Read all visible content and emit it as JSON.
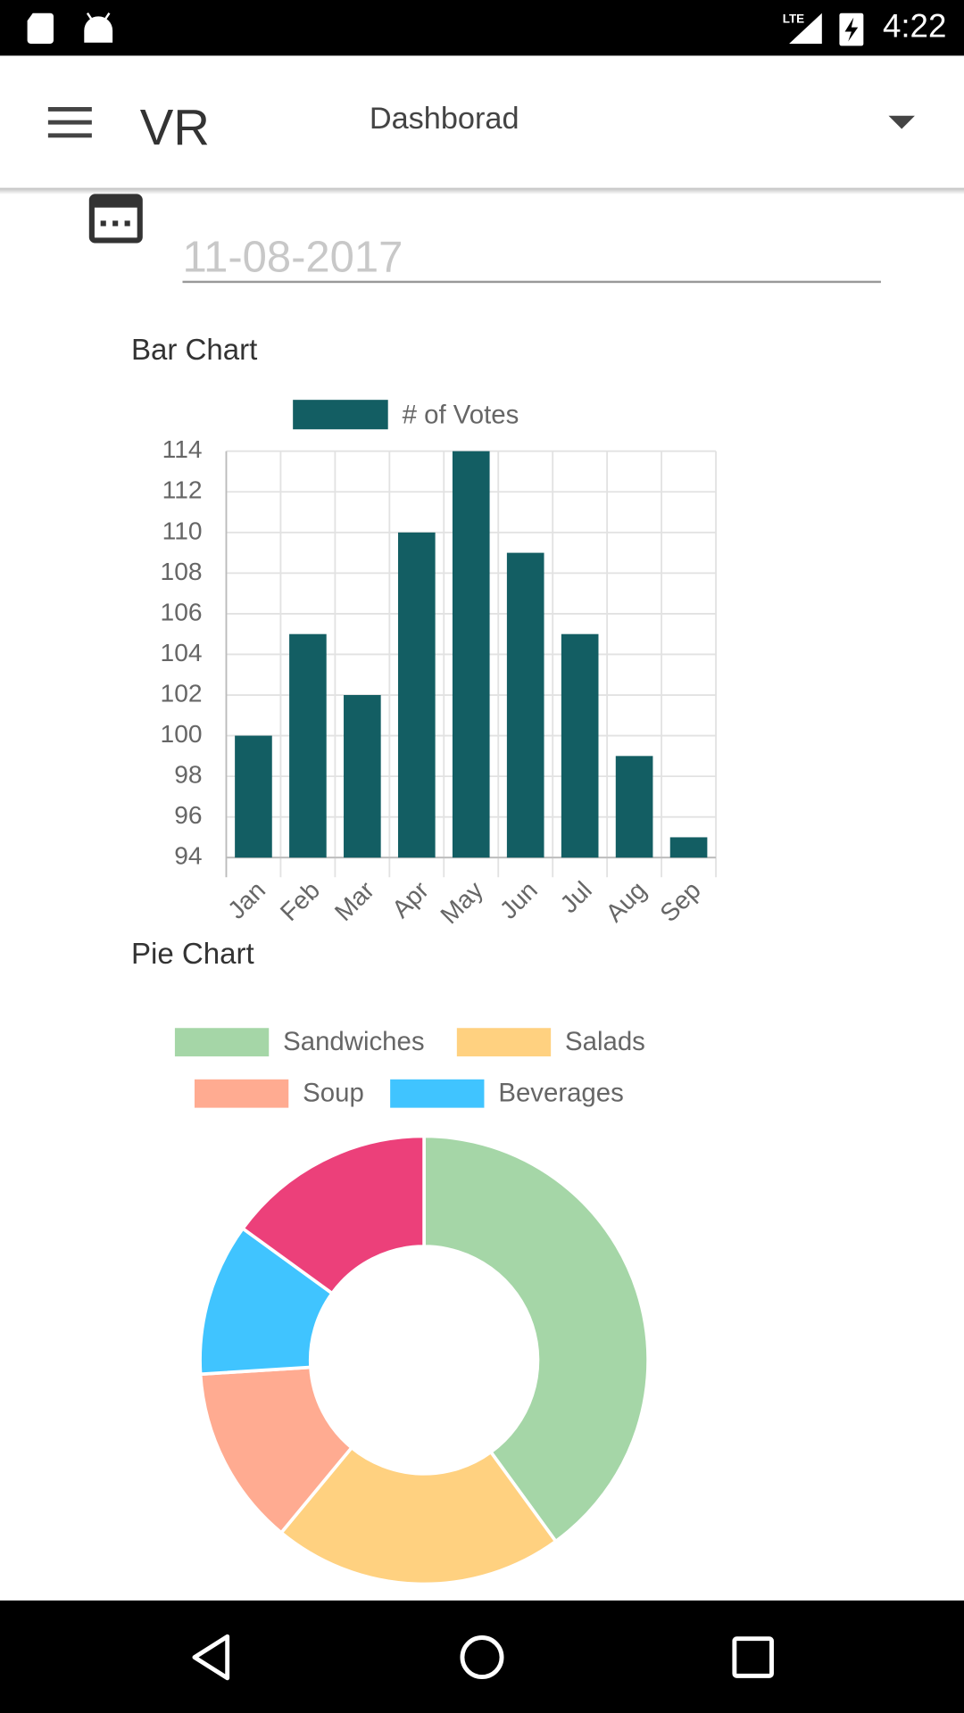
{
  "status_bar": {
    "time": "4:22"
  },
  "app_bar": {
    "title": "VR",
    "menu": "Dashborad"
  },
  "date_field": {
    "value": "11-08-2017"
  },
  "chart_data": [
    {
      "type": "bar",
      "title": "Bar Chart",
      "categories": [
        "Jan",
        "Feb",
        "Mar",
        "Apr",
        "May",
        "Jun",
        "Jul",
        "Aug",
        "Sep"
      ],
      "series": [
        {
          "name": "# of Votes",
          "color": "#135e63",
          "values": [
            100,
            105,
            102,
            110,
            114,
            109,
            105,
            99,
            95
          ]
        }
      ],
      "ylim": [
        94,
        114
      ],
      "yticks": [
        94,
        96,
        98,
        100,
        102,
        104,
        106,
        108,
        110,
        112,
        114
      ],
      "grid": true,
      "legend": "top"
    },
    {
      "type": "doughnut",
      "title": "Pie Chart",
      "categories": [
        "Sandwiches",
        "Salads",
        "Soup",
        "Beverages",
        null
      ],
      "values": [
        40,
        21,
        13,
        11,
        15
      ],
      "colors": [
        "#a5d6a7",
        "#ffd180",
        "#ffab91",
        "#40c4ff",
        "#ec407a"
      ],
      "legend": "top"
    }
  ]
}
